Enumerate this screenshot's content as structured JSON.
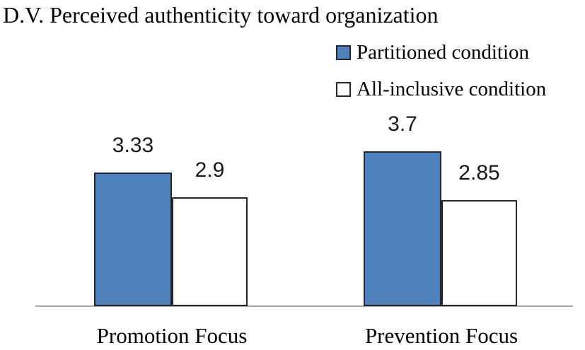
{
  "title": "D.V. Perceived authenticity toward organization",
  "legend": {
    "items": [
      {
        "label": "Partitioned condition",
        "fill": "#4F81BD"
      },
      {
        "label": "All-inclusive condition",
        "fill": "#FFFFFF"
      }
    ]
  },
  "chart_data": {
    "type": "bar",
    "title": "D.V. Perceived authenticity toward organization",
    "categories": [
      "Promotion Focus",
      "Prevention Focus"
    ],
    "series": [
      {
        "name": "Partitioned condition",
        "values": [
          3.33,
          3.7
        ],
        "labels": [
          "3.33",
          "3.7"
        ],
        "fill": "#4F81BD"
      },
      {
        "name": "All-inclusive condition",
        "values": [
          2.9,
          2.85
        ],
        "labels": [
          "2.9",
          "2.85"
        ],
        "fill": "#FFFFFF"
      }
    ],
    "ylim": [
      1,
      4.4
    ],
    "y_axis_visible": false,
    "x_axis_visible": true,
    "grid": false,
    "legend_position": "top-right",
    "bar_border_color": "#26262E",
    "axis_line_color": "#A6A6A6"
  },
  "colors": {
    "bar_blue": "#4F81BD",
    "bar_white": "#FFFFFF",
    "bar_border": "#26262E",
    "axis_line": "#A6A6A6",
    "text": "#000000"
  }
}
